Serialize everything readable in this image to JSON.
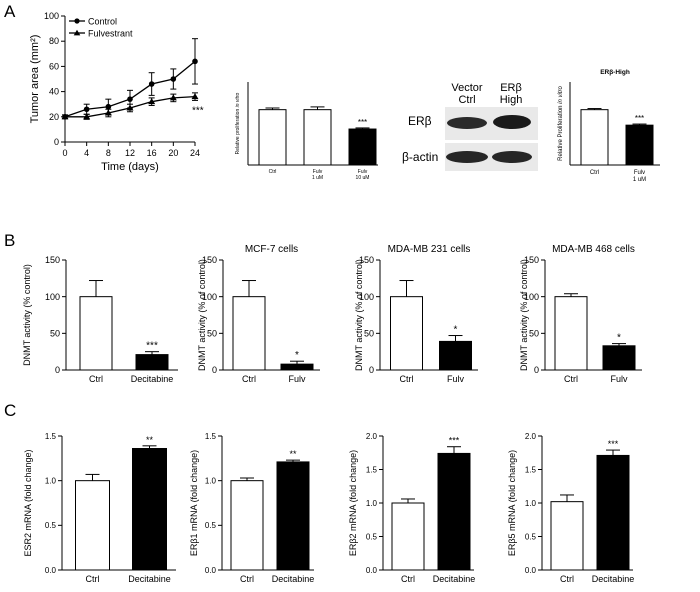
{
  "panel_letters": [
    "A",
    "B",
    "C"
  ],
  "blot": {
    "columns": [
      "Vector",
      "Ctrl",
      "ERβ",
      "High"
    ],
    "rows": [
      "ERβ",
      "β-actin"
    ]
  },
  "chart_data": [
    {
      "id": "a1",
      "type": "line",
      "xlabel": "Time (days)",
      "ylabel": "Tumor area (mm²)",
      "x": [
        0,
        4,
        8,
        12,
        16,
        20,
        24
      ],
      "xlim": [
        0,
        24
      ],
      "ylim": [
        0,
        100
      ],
      "xticks": [
        0,
        4,
        8,
        12,
        16,
        20,
        24
      ],
      "yticks": [
        0,
        20,
        40,
        60,
        80,
        100
      ],
      "legend_position": "top-left",
      "series": [
        {
          "name": "Control",
          "marker": "circle",
          "values": [
            20,
            26,
            28,
            34,
            46,
            50,
            64
          ],
          "errors": [
            1.5,
            4,
            6,
            7,
            9,
            8,
            18
          ]
        },
        {
          "name": "Fulvestrant",
          "marker": "triangle",
          "values": [
            20,
            20,
            23,
            27,
            32,
            35,
            36
          ],
          "errors": [
            1.5,
            2,
            3,
            3,
            3,
            3,
            3
          ]
        }
      ],
      "annotations": [
        {
          "text": "***",
          "x": 24
        }
      ]
    },
    {
      "id": "a2",
      "type": "bar",
      "ylabel": "Relative proliferation in vitro",
      "categories": [
        [
          "Ctrl"
        ],
        [
          "Fulv",
          "1 uM"
        ],
        [
          "Fulv",
          "10 uM"
        ]
      ],
      "values": [
        1.0,
        1.0,
        0.65
      ],
      "errors": [
        0.03,
        0.05,
        0.02
      ],
      "fills": [
        "#ffffff",
        "#ffffff",
        "#000000"
      ],
      "stars": [
        "",
        "",
        "***"
      ],
      "ylim": [
        0,
        1.5
      ],
      "yticks": []
    },
    {
      "id": "a3",
      "type": "bar",
      "title": "ERβ-High",
      "ylabel": "Relative Proliferation in vitro",
      "categories": [
        [
          "Ctrl"
        ],
        [
          "Fulv",
          "1 uM"
        ]
      ],
      "values": [
        1.0,
        0.72
      ],
      "errors": [
        0.02,
        0.02
      ],
      "fills": [
        "#ffffff",
        "#000000"
      ],
      "stars": [
        "",
        "***"
      ],
      "ylim": [
        0,
        1.5
      ],
      "yticks": []
    },
    {
      "id": "b1",
      "type": "bar",
      "ylabel": "DNMT activity (% control)",
      "categories": [
        [
          "Ctrl"
        ],
        [
          "Decitabine"
        ]
      ],
      "values": [
        100,
        21
      ],
      "errors": [
        22,
        4
      ],
      "fills": [
        "#ffffff",
        "#000000"
      ],
      "stars": [
        "",
        "***"
      ],
      "ylim": [
        0,
        150
      ],
      "yticks": [
        0,
        50,
        100,
        150
      ]
    },
    {
      "id": "b2",
      "type": "bar",
      "title": "MCF-7 cells",
      "ylabel": "DNMT activity (% of control)",
      "categories": [
        [
          "Ctrl"
        ],
        [
          "Fulv"
        ]
      ],
      "values": [
        100,
        8
      ],
      "errors": [
        22,
        4
      ],
      "fills": [
        "#ffffff",
        "#000000"
      ],
      "stars": [
        "",
        "*"
      ],
      "ylim": [
        0,
        150
      ],
      "yticks": [
        0,
        50,
        100,
        150
      ]
    },
    {
      "id": "b3",
      "type": "bar",
      "title": "MDA-MB 231 cells",
      "ylabel": "DNMT activity (% of control)",
      "categories": [
        [
          "Ctrl"
        ],
        [
          "Fulv"
        ]
      ],
      "values": [
        100,
        39
      ],
      "errors": [
        22,
        8
      ],
      "fills": [
        "#ffffff",
        "#000000"
      ],
      "stars": [
        "",
        "*"
      ],
      "ylim": [
        0,
        150
      ],
      "yticks": [
        0,
        50,
        100,
        150
      ]
    },
    {
      "id": "b4",
      "type": "bar",
      "title": "MDA-MB 468 cells",
      "ylabel": "DNMT activity (% of control)",
      "categories": [
        [
          "Ctrl"
        ],
        [
          "Fulv"
        ]
      ],
      "values": [
        100,
        33
      ],
      "errors": [
        4,
        3
      ],
      "fills": [
        "#ffffff",
        "#000000"
      ],
      "stars": [
        "",
        "*"
      ],
      "ylim": [
        0,
        150
      ],
      "yticks": [
        0,
        50,
        100,
        150
      ]
    },
    {
      "id": "c1",
      "type": "bar",
      "ylabel": "ESR2 mRNA (fold change)",
      "categories": [
        [
          "Ctrl"
        ],
        [
          "Decitabine"
        ]
      ],
      "values": [
        1.0,
        1.36
      ],
      "errors": [
        0.07,
        0.03
      ],
      "fills": [
        "#ffffff",
        "#000000"
      ],
      "stars": [
        "",
        "**"
      ],
      "ylim": [
        0,
        1.5
      ],
      "yticks": [
        "0.0",
        "0.5",
        "1.0",
        "1.5"
      ]
    },
    {
      "id": "c2",
      "type": "bar",
      "ylabel": "ERβ1 mRNA (fold change)",
      "categories": [
        [
          "Ctrl"
        ],
        [
          "Decitabine"
        ]
      ],
      "values": [
        1.0,
        1.21
      ],
      "errors": [
        0.03,
        0.02
      ],
      "fills": [
        "#ffffff",
        "#000000"
      ],
      "stars": [
        "",
        "**"
      ],
      "ylim": [
        0,
        1.5
      ],
      "yticks": [
        "0.0",
        "0.5",
        "1.0",
        "1.5"
      ]
    },
    {
      "id": "c3",
      "type": "bar",
      "ylabel": "ERβ2 mRNA (fold change)",
      "categories": [
        [
          "Ctrl"
        ],
        [
          "Decitabine"
        ]
      ],
      "values": [
        1.0,
        1.74
      ],
      "errors": [
        0.06,
        0.1
      ],
      "fills": [
        "#ffffff",
        "#000000"
      ],
      "stars": [
        "",
        "***"
      ],
      "ylim": [
        0,
        2.0
      ],
      "yticks": [
        "0.0",
        "0.5",
        "1.0",
        "1.5",
        "2.0"
      ]
    },
    {
      "id": "c4",
      "type": "bar",
      "ylabel": "ERβ5 mRNA (fold change)",
      "categories": [
        [
          "Ctrl"
        ],
        [
          "Decitabine"
        ]
      ],
      "values": [
        1.02,
        1.71
      ],
      "errors": [
        0.1,
        0.08
      ],
      "fills": [
        "#ffffff",
        "#000000"
      ],
      "stars": [
        "",
        "***"
      ],
      "ylim": [
        0,
        2.0
      ],
      "yticks": [
        "0.0",
        "0.5",
        "1.0",
        "1.5",
        "2.0"
      ]
    }
  ]
}
